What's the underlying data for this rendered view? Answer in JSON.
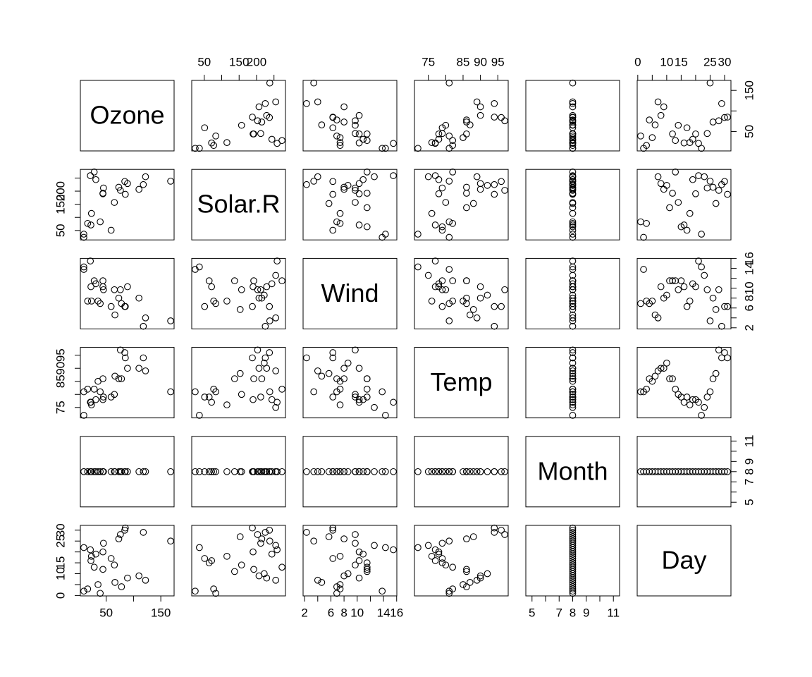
{
  "chart_data": {
    "type": "pairs",
    "variables": [
      {
        "name": "Ozone",
        "values": [
          39,
          9,
          16,
          78,
          35,
          66,
          122,
          89,
          110,
          null,
          null,
          44,
          28,
          65,
          null,
          22,
          59,
          23,
          31,
          44,
          21,
          9,
          null,
          45,
          168,
          73,
          null,
          76,
          118,
          84,
          85
        ],
        "lim": [
          2.64,
          174.36
        ],
        "ticks": [
          50,
          100,
          150
        ],
        "labels": [
          50,
          150
        ]
      },
      {
        "name": "Solar.R",
        "values": [
          83,
          24,
          77,
          null,
          null,
          null,
          255,
          229,
          207,
          222,
          137,
          192,
          273,
          157,
          64,
          71,
          51,
          115,
          244,
          190,
          259,
          36,
          255,
          212,
          238,
          215,
          153,
          203,
          225,
          237,
          188
        ],
        "lim": [
          14.04,
          282.96
        ],
        "ticks": [
          50,
          100,
          150,
          200,
          250
        ],
        "labels": [
          50,
          150,
          200
        ]
      },
      {
        "name": "Wind",
        "values": [
          6.9,
          13.8,
          7.4,
          6.9,
          7.4,
          4.6,
          4.0,
          10.3,
          8.0,
          8.6,
          11.5,
          11.5,
          11.5,
          9.7,
          11.5,
          10.3,
          6.3,
          7.4,
          10.9,
          10.3,
          15.5,
          14.3,
          12.6,
          9.7,
          3.4,
          8.0,
          5.7,
          9.7,
          2.3,
          6.3,
          6.3
        ],
        "lim": [
          1.772,
          16.028
        ],
        "ticks": [
          2,
          4,
          6,
          8,
          10,
          12,
          14,
          16
        ],
        "labels": [
          2,
          6,
          8,
          10,
          14,
          16
        ]
      },
      {
        "name": "Temp",
        "values": [
          81,
          81,
          82,
          86,
          85,
          87,
          89,
          90,
          90,
          92,
          86,
          86,
          82,
          80,
          79,
          77,
          79,
          76,
          78,
          78,
          77,
          72,
          75,
          79,
          81,
          86,
          88,
          97,
          94,
          96,
          94
        ],
        "lim": [
          71,
          98
        ],
        "ticks": [
          75,
          80,
          85,
          90,
          95
        ],
        "labels": [
          75,
          85,
          90,
          95
        ]
      },
      {
        "name": "Month",
        "values": [
          8,
          8,
          8,
          8,
          8,
          8,
          8,
          8,
          8,
          8,
          8,
          8,
          8,
          8,
          8,
          8,
          8,
          8,
          8,
          8,
          8,
          8,
          8,
          8,
          8,
          8,
          8,
          8,
          8,
          8,
          8
        ],
        "lim": [
          4.544,
          11.456
        ],
        "ticks": [
          5,
          6,
          7,
          8,
          9,
          10,
          11
        ],
        "labels": [
          5,
          7,
          8,
          9,
          11
        ]
      },
      {
        "name": "Day",
        "values": [
          1,
          2,
          3,
          4,
          5,
          6,
          7,
          8,
          9,
          10,
          11,
          12,
          13,
          14,
          15,
          16,
          17,
          18,
          19,
          20,
          21,
          22,
          23,
          24,
          25,
          26,
          27,
          28,
          29,
          30,
          31
        ],
        "lim": [
          -0.2,
          32.2
        ],
        "ticks": [
          0,
          5,
          10,
          15,
          20,
          25,
          30
        ],
        "labels": [
          0,
          10,
          15,
          25,
          30
        ]
      }
    ]
  }
}
